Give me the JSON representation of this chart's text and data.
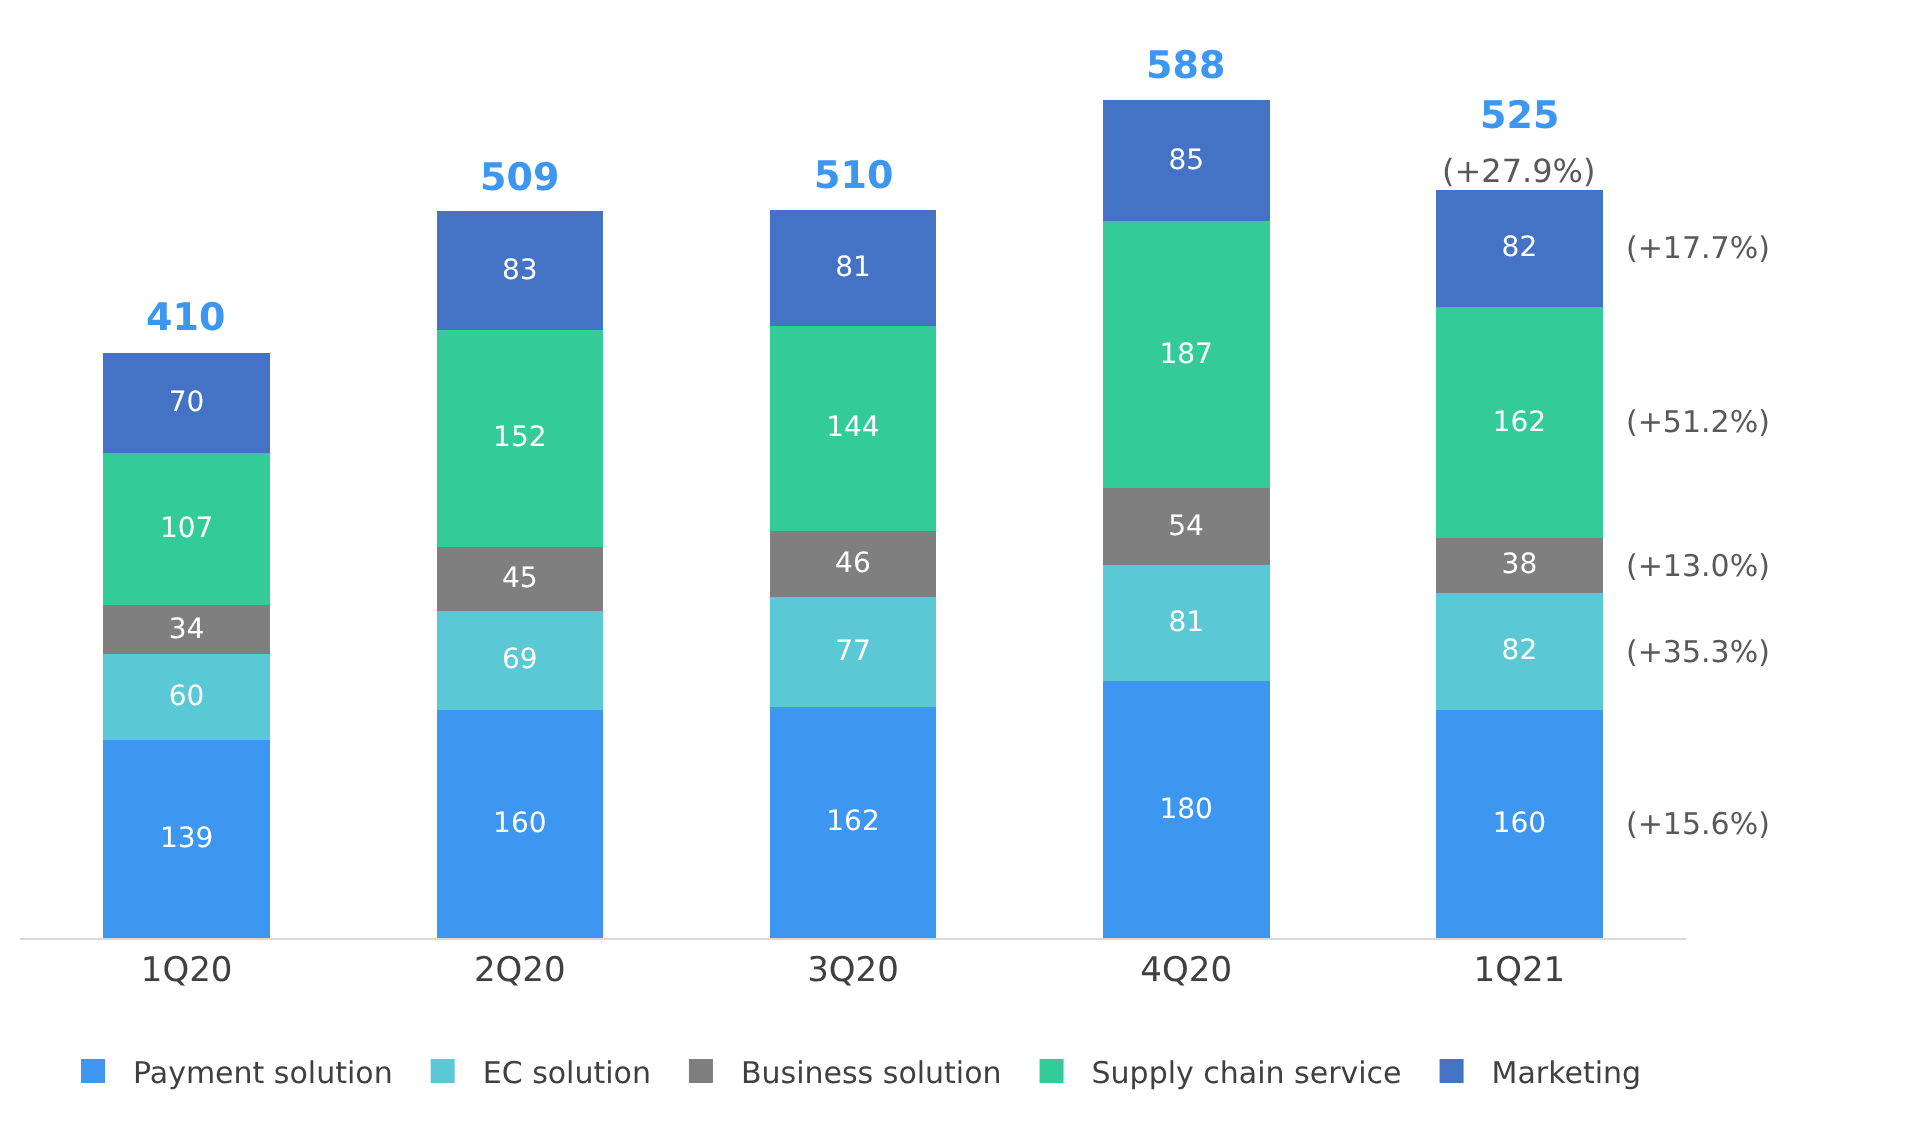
{
  "chart_data": {
    "type": "bar",
    "stacked": true,
    "data_labels": true,
    "legend": "bottom",
    "categories": [
      "1Q20",
      "2Q20",
      "3Q20",
      "4Q20",
      "1Q21"
    ],
    "series": [
      {
        "name": "Payment solution",
        "color": "#3d97f0",
        "values": [
          139,
          160,
          162,
          180,
          160
        ]
      },
      {
        "name": "EC solution",
        "color": "#5bc8d6",
        "values": [
          60,
          69,
          77,
          81,
          82
        ]
      },
      {
        "name": "Business solution",
        "color": "#7f7f7f",
        "values": [
          34,
          45,
          46,
          54,
          38
        ]
      },
      {
        "name": "Supply chain service",
        "color": "#33cc99",
        "values": [
          107,
          152,
          144,
          187,
          162
        ]
      },
      {
        "name": "Marketing",
        "color": "#4472c4",
        "values": [
          70,
          83,
          81,
          85,
          82
        ]
      }
    ],
    "totals": [
      "410",
      "509",
      "510",
      "588",
      "525"
    ],
    "annotations": [
      "(+27.9%)",
      "(+17.7%)",
      "(+51.2%)",
      "(+13.0%)",
      "(+35.3%)",
      "(+15.6%)"
    ]
  }
}
